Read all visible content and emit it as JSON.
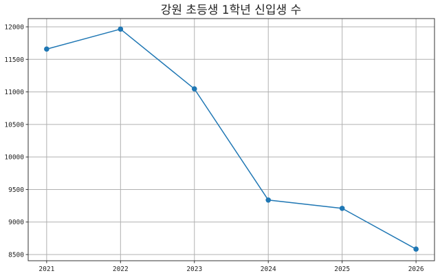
{
  "chart_data": {
    "type": "line",
    "title": "강원 초등생 1학년 신입생 수",
    "xlabel": "",
    "ylabel": "",
    "x": [
      2021,
      2022,
      2023,
      2024,
      2025,
      2026
    ],
    "x_tick_labels": [
      "2021",
      "2022",
      "2023",
      "2024",
      "2025",
      "2026"
    ],
    "y_ticks": [
      8500,
      9000,
      9500,
      10000,
      10500,
      11000,
      11500,
      12000
    ],
    "y_tick_labels": [
      "8500",
      "9000",
      "9500",
      "10000",
      "10500",
      "11000",
      "11500",
      "12000"
    ],
    "series": [
      {
        "values": [
          11658,
          11965,
          11046,
          9338,
          9210,
          8584
        ],
        "color": "#1f77b4",
        "marker": "circle"
      }
    ],
    "xlim": [
      2020.75,
      2026.25
    ],
    "ylim": [
      8405,
      12127
    ],
    "grid": true
  }
}
